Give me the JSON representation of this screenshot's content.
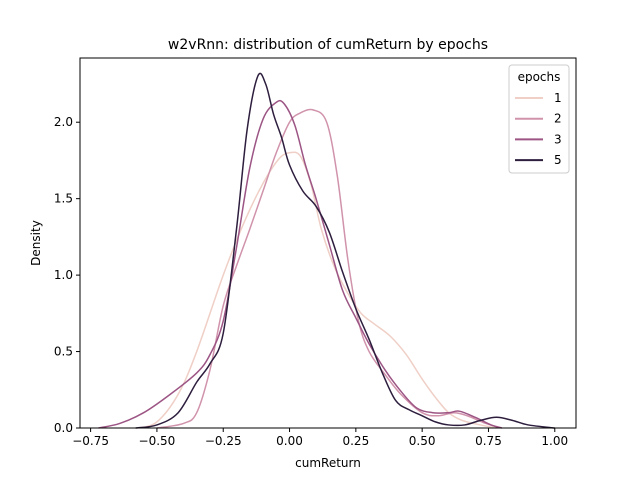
{
  "chart_data": {
    "type": "line",
    "title": "w2vRnn: distribution of cumReturn by epochs",
    "xlabel": "cumReturn",
    "ylabel": "Density",
    "xlim": [
      -0.79,
      1.08
    ],
    "ylim": [
      0,
      2.42
    ],
    "xticks": [
      -0.75,
      -0.5,
      -0.25,
      0.0,
      0.25,
      0.5,
      0.75,
      1.0
    ],
    "xtick_labels": [
      "−0.75",
      "−0.50",
      "−0.25",
      "0.00",
      "0.25",
      "0.50",
      "0.75",
      "1.00"
    ],
    "yticks": [
      0.0,
      0.5,
      1.0,
      1.5,
      2.0
    ],
    "ytick_labels": [
      "0.0",
      "0.5",
      "1.0",
      "1.5",
      "2.0"
    ],
    "grid": false,
    "legend": {
      "title": "epochs",
      "placement": "top-right"
    },
    "series": [
      {
        "name": "1",
        "color": "#efcfc6",
        "points": [
          [
            -0.57,
            0.0
          ],
          [
            -0.5,
            0.04
          ],
          [
            -0.42,
            0.22
          ],
          [
            -0.35,
            0.5
          ],
          [
            -0.25,
            1.0
          ],
          [
            -0.17,
            1.35
          ],
          [
            -0.1,
            1.6
          ],
          [
            -0.04,
            1.76
          ],
          [
            0.0,
            1.8
          ],
          [
            0.04,
            1.78
          ],
          [
            0.08,
            1.6
          ],
          [
            0.12,
            1.3
          ],
          [
            0.17,
            1.05
          ],
          [
            0.22,
            0.88
          ],
          [
            0.27,
            0.75
          ],
          [
            0.32,
            0.68
          ],
          [
            0.38,
            0.6
          ],
          [
            0.44,
            0.48
          ],
          [
            0.5,
            0.32
          ],
          [
            0.55,
            0.2
          ],
          [
            0.6,
            0.1
          ],
          [
            0.65,
            0.05
          ],
          [
            0.72,
            0.02
          ],
          [
            0.78,
            0.0
          ]
        ]
      },
      {
        "name": "2",
        "color": "#d093ab",
        "points": [
          [
            -0.5,
            0.0
          ],
          [
            -0.4,
            0.03
          ],
          [
            -0.35,
            0.1
          ],
          [
            -0.3,
            0.38
          ],
          [
            -0.25,
            0.8
          ],
          [
            -0.2,
            1.06
          ],
          [
            -0.15,
            1.3
          ],
          [
            -0.1,
            1.55
          ],
          [
            -0.05,
            1.8
          ],
          [
            0.0,
            2.0
          ],
          [
            0.04,
            2.06
          ],
          [
            0.09,
            2.08
          ],
          [
            0.14,
            2.0
          ],
          [
            0.18,
            1.65
          ],
          [
            0.22,
            1.1
          ],
          [
            0.26,
            0.7
          ],
          [
            0.3,
            0.5
          ],
          [
            0.36,
            0.35
          ],
          [
            0.42,
            0.22
          ],
          [
            0.5,
            0.1
          ],
          [
            0.56,
            0.08
          ],
          [
            0.62,
            0.1
          ],
          [
            0.67,
            0.08
          ],
          [
            0.74,
            0.03
          ],
          [
            0.8,
            0.0
          ]
        ]
      },
      {
        "name": "3",
        "color": "#9c5584",
        "points": [
          [
            -0.72,
            0.0
          ],
          [
            -0.64,
            0.03
          ],
          [
            -0.55,
            0.1
          ],
          [
            -0.45,
            0.22
          ],
          [
            -0.35,
            0.36
          ],
          [
            -0.3,
            0.48
          ],
          [
            -0.25,
            0.7
          ],
          [
            -0.2,
            1.18
          ],
          [
            -0.15,
            1.7
          ],
          [
            -0.1,
            2.02
          ],
          [
            -0.05,
            2.13
          ],
          [
            -0.02,
            2.12
          ],
          [
            0.02,
            1.98
          ],
          [
            0.06,
            1.72
          ],
          [
            0.1,
            1.5
          ],
          [
            0.15,
            1.2
          ],
          [
            0.2,
            0.9
          ],
          [
            0.25,
            0.72
          ],
          [
            0.3,
            0.55
          ],
          [
            0.36,
            0.38
          ],
          [
            0.42,
            0.24
          ],
          [
            0.48,
            0.13
          ],
          [
            0.54,
            0.1
          ],
          [
            0.6,
            0.1
          ],
          [
            0.64,
            0.11
          ],
          [
            0.7,
            0.07
          ],
          [
            0.76,
            0.02
          ],
          [
            0.8,
            0.0
          ]
        ]
      },
      {
        "name": "5",
        "color": "#2d1e3e",
        "points": [
          [
            -0.58,
            0.0
          ],
          [
            -0.5,
            0.02
          ],
          [
            -0.42,
            0.1
          ],
          [
            -0.35,
            0.3
          ],
          [
            -0.3,
            0.42
          ],
          [
            -0.25,
            0.62
          ],
          [
            -0.2,
            1.3
          ],
          [
            -0.16,
            1.95
          ],
          [
            -0.12,
            2.3
          ],
          [
            -0.09,
            2.25
          ],
          [
            -0.06,
            2.05
          ],
          [
            -0.03,
            1.9
          ],
          [
            0.0,
            1.72
          ],
          [
            0.05,
            1.55
          ],
          [
            0.1,
            1.45
          ],
          [
            0.15,
            1.28
          ],
          [
            0.2,
            1.02
          ],
          [
            0.25,
            0.78
          ],
          [
            0.3,
            0.58
          ],
          [
            0.35,
            0.36
          ],
          [
            0.4,
            0.18
          ],
          [
            0.45,
            0.12
          ],
          [
            0.5,
            0.08
          ],
          [
            0.55,
            0.04
          ],
          [
            0.6,
            0.02
          ],
          [
            0.66,
            0.02
          ],
          [
            0.72,
            0.05
          ],
          [
            0.78,
            0.07
          ],
          [
            0.84,
            0.05
          ],
          [
            0.9,
            0.02
          ],
          [
            1.0,
            0.0
          ]
        ]
      }
    ]
  }
}
